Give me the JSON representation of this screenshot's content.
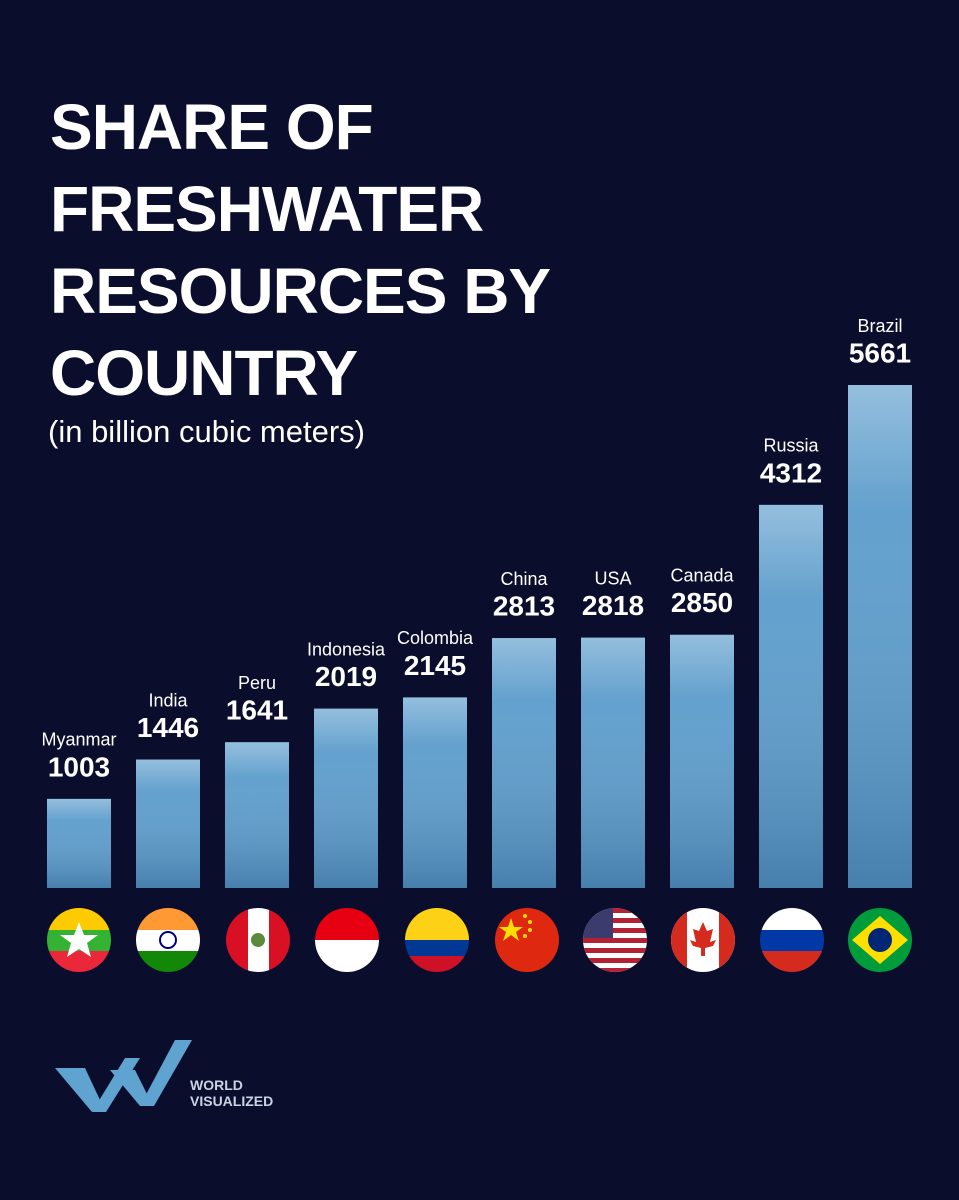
{
  "chart_data": {
    "type": "bar",
    "title": "SHARE OF FRESHWATER RESOURCES BY COUNTRY",
    "subtitle": "(in billion cubic meters)",
    "categories": [
      "Myanmar",
      "India",
      "Peru",
      "Indonesia",
      "Colombia",
      "China",
      "USA",
      "Canada",
      "Russia",
      "Brazil"
    ],
    "values": [
      1003,
      1446,
      1641,
      2019,
      2145,
      2813,
      2818,
      2850,
      4312,
      5661
    ],
    "color": "#5b9ccb"
  },
  "logo": {
    "text": "WORLD VISUALIZED"
  }
}
